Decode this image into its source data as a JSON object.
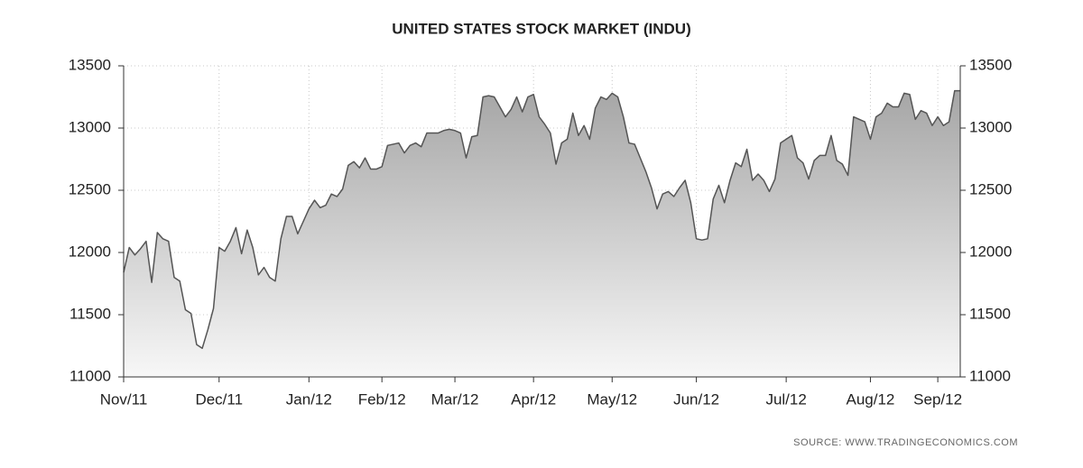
{
  "chart_data": {
    "type": "area",
    "title": "UNITED STATES STOCK MARKET (INDU)",
    "source": "SOURCE:  WWW.TRADINGECONOMICS.COM",
    "categories": [
      "Nov/11",
      null,
      null,
      null,
      null,
      null,
      null,
      null,
      null,
      null,
      null,
      null,
      null,
      null,
      null,
      null,
      null,
      "Dec/11",
      null,
      null,
      null,
      null,
      null,
      null,
      null,
      null,
      null,
      null,
      null,
      null,
      null,
      null,
      null,
      "Jan/12",
      null,
      null,
      null,
      null,
      null,
      null,
      null,
      null,
      null,
      null,
      null,
      null,
      "Feb/12",
      null,
      null,
      null,
      null,
      null,
      null,
      null,
      null,
      null,
      null,
      null,
      null,
      "Mar/12",
      null,
      null,
      null,
      null,
      null,
      null,
      null,
      null,
      null,
      null,
      null,
      null,
      null,
      "Apr/12",
      null,
      null,
      null,
      null,
      null,
      null,
      null,
      null,
      null,
      null,
      null,
      null,
      null,
      "May/12",
      null,
      null,
      null,
      null,
      null,
      null,
      null,
      null,
      null,
      null,
      null,
      null,
      null,
      null,
      "Jun/12",
      null,
      null,
      null,
      null,
      null,
      null,
      null,
      null,
      null,
      null,
      null,
      null,
      null,
      null,
      null,
      "Jul/12",
      null,
      null,
      null,
      null,
      null,
      null,
      null,
      null,
      null,
      null,
      null,
      null,
      null,
      null,
      "Aug/12",
      null,
      null,
      null,
      null,
      null,
      null,
      null,
      null,
      null,
      null,
      null,
      "Sep/12",
      null,
      null,
      null,
      null
    ],
    "series": [
      {
        "color": "#555555",
        "values": [
          11840,
          12040,
          11980,
          12030,
          12090,
          11760,
          12160,
          12110,
          12090,
          11800,
          11770,
          11540,
          11510,
          11260,
          11230,
          11380,
          11550,
          12040,
          12010,
          12090,
          12200,
          11990,
          12180,
          12040,
          11820,
          11880,
          11800,
          11770,
          12110,
          12290,
          12290,
          12150,
          12250,
          12350,
          12420,
          12360,
          12380,
          12470,
          12450,
          12510,
          12700,
          12730,
          12680,
          12760,
          12670,
          12670,
          12690,
          12860,
          12870,
          12880,
          12800,
          12860,
          12880,
          12850,
          12960,
          12960,
          12960,
          12980,
          12990,
          12980,
          12960,
          12760,
          12930,
          12940,
          13250,
          13260,
          13250,
          13170,
          13090,
          13150,
          13250,
          13130,
          13250,
          13270,
          13090,
          13030,
          12960,
          12710,
          12880,
          12910,
          13120,
          12940,
          13020,
          12910,
          13160,
          13250,
          13230,
          13280,
          13250,
          13090,
          12880,
          12870,
          12760,
          12650,
          12520,
          12350,
          12470,
          12490,
          12450,
          12520,
          12580,
          12400,
          12110,
          12100,
          12110,
          12430,
          12540,
          12400,
          12580,
          12720,
          12690,
          12830,
          12580,
          12630,
          12580,
          12490,
          12590,
          12880,
          12910,
          12940,
          12760,
          12720,
          12590,
          12740,
          12780,
          12780,
          12940,
          12740,
          12710,
          12620,
          13090,
          13070,
          13050,
          12910,
          13090,
          13120,
          13200,
          13170,
          13170,
          13280,
          13270,
          13070,
          13140,
          13120,
          13020,
          13090,
          13020,
          13050,
          13300,
          13300
        ]
      }
    ],
    "ylim": [
      11000,
      13500
    ],
    "yticks": [
      11000,
      11500,
      12000,
      12500,
      13000,
      13500
    ],
    "y2lim": [
      11000,
      13500
    ],
    "y2ticks": [
      11000,
      11500,
      12000,
      12500,
      13000,
      13500
    ],
    "grid": true
  }
}
